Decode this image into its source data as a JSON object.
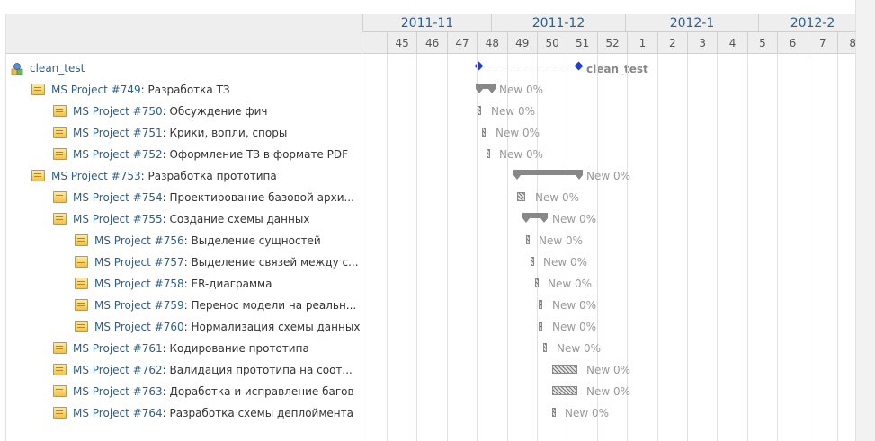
{
  "timeline": {
    "months": [
      "2011-11",
      "2011-12",
      "2012-1",
      "2012-2"
    ],
    "weeks": [
      "45",
      "46",
      "47",
      "48",
      "49",
      "50",
      "51",
      "52",
      "1",
      "2",
      "3",
      "4",
      "5",
      "6",
      "7",
      "8"
    ]
  },
  "project": {
    "name": "clean_test",
    "bar_label": "clean_test"
  },
  "tasks": [
    {
      "id": "MS Project #749",
      "name": ": Разработка ТЗ",
      "level": 1,
      "status": "New 0%"
    },
    {
      "id": "MS Project #750",
      "name": ": Обсуждение фич",
      "level": 2,
      "status": "New 0%"
    },
    {
      "id": "MS Project #751",
      "name": ": Крики, вопли, споры",
      "level": 2,
      "status": "New 0%"
    },
    {
      "id": "MS Project #752",
      "name": ": Оформление ТЗ в формате PDF",
      "level": 2,
      "status": "New 0%"
    },
    {
      "id": "MS Project #753",
      "name": ": Разработка прототипа",
      "level": 1,
      "status": "New 0%"
    },
    {
      "id": "MS Project #754",
      "name": ": Проектирование базовой архи...",
      "level": 2,
      "status": "New 0%"
    },
    {
      "id": "MS Project #755",
      "name": ": Создание схемы данных",
      "level": 2,
      "status": "New 0%"
    },
    {
      "id": "MS Project #756",
      "name": ": Выделение сущностей",
      "level": 3,
      "status": "New 0%"
    },
    {
      "id": "MS Project #757",
      "name": ": Выделение связей между с...",
      "level": 3,
      "status": "New 0%"
    },
    {
      "id": "MS Project #758",
      "name": ": ER-диаграмма",
      "level": 3,
      "status": "New 0%"
    },
    {
      "id": "MS Project #759",
      "name": ": Перенос модели на реальн...",
      "level": 3,
      "status": "New 0%"
    },
    {
      "id": "MS Project #760",
      "name": ": Нормализация схемы данных",
      "level": 3,
      "status": "New 0%"
    },
    {
      "id": "MS Project #761",
      "name": ": Кодирование прототипа",
      "level": 2,
      "status": "New 0%"
    },
    {
      "id": "MS Project #762",
      "name": ": Валидация прототипа на соот...",
      "level": 2,
      "status": "New 0%"
    },
    {
      "id": "MS Project #763",
      "name": ": Доработка и исправление багов",
      "level": 2,
      "status": "New 0%"
    },
    {
      "id": "MS Project #764",
      "name": ": Разработка схемы деплоймента",
      "level": 2,
      "status": "New 0%"
    }
  ],
  "colors": {
    "link": "#2c5f8b",
    "bar_parent": "#888888",
    "milestone": "#1f3fd6",
    "today_line": "#dd4444"
  }
}
